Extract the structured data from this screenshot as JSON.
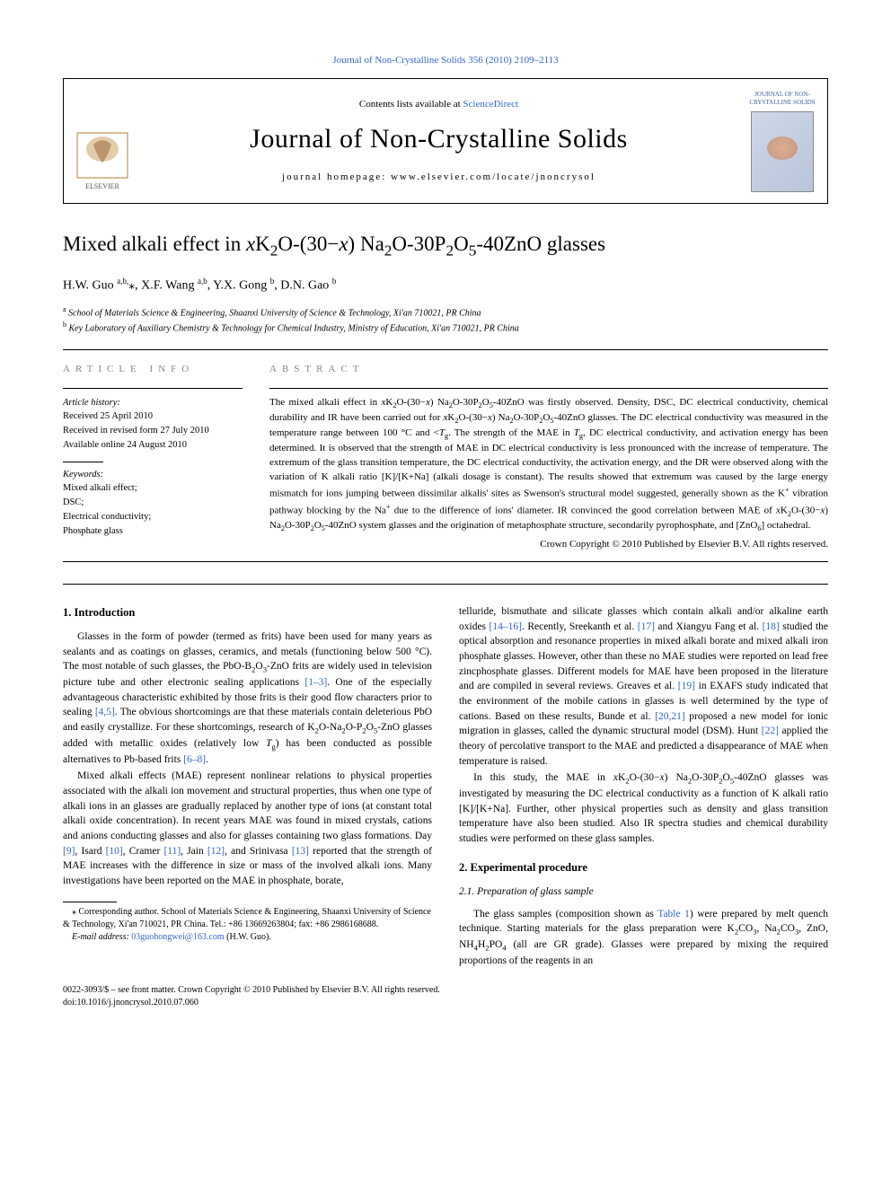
{
  "topLink": {
    "prefix": "",
    "journal": "Journal of Non-Crystalline Solids 356 (2010) 2109–2113"
  },
  "headerBox": {
    "contentsPrefix": "Contents lists available at ",
    "contentsLink": "ScienceDirect",
    "journalTitle": "Journal of Non-Crystalline Solids",
    "homepage": "journal homepage: www.elsevier.com/locate/jnoncrysol",
    "issnTag": "JOURNAL OF\nNON-CRYSTALLINE SOLIDS"
  },
  "article": {
    "title_html": "Mixed alkali effect in <span class='ital'>x</span>K<span class='sub'>2</span>O-(30−<span class='ital'>x</span>) Na<span class='sub'>2</span>O-30P<span class='sub'>2</span>O<span class='sub'>5</span>-40ZnO glasses",
    "authors_html": "H.W. Guo <span class='sup'>a,b,</span><span class='star'>⁎</span>, X.F. Wang <span class='sup'>a,b</span>, Y.X. Gong <span class='sup'>b</span>, D.N. Gao <span class='sup'>b</span>",
    "affiliations": [
      {
        "sup": "a",
        "text": "School of Materials Science & Engineering, Shaanxi University of Science & Technology, Xi'an 710021, PR China"
      },
      {
        "sup": "b",
        "text": "Key Laboratory of Auxiliary Chemistry & Technology for Chemical Industry, Ministry of Education, Xi'an 710021, PR China"
      }
    ]
  },
  "info": {
    "label": "article info",
    "historyLabel": "Article history:",
    "history": [
      "Received 25 April 2010",
      "Received in revised form 27 July 2010",
      "Available online 24 August 2010"
    ],
    "keywordsLabel": "Keywords:",
    "keywords": [
      "Mixed alkali effect;",
      "DSC;",
      "Electrical conductivity;",
      "Phosphate glass"
    ]
  },
  "abstract": {
    "label": "abstract",
    "text_html": "The mixed alkali effect in <span class='ital'>x</span>K<span class='sub'>2</span>O-(30−<span class='ital'>x</span>) Na<span class='sub'>2</span>O-30P<span class='sub'>2</span>O<span class='sub'>5</span>-40ZnO was firstly observed. Density, DSC, DC electrical conductivity, chemical durability and IR have been carried out for <span class='ital'>x</span>K<span class='sub'>2</span>O-(30−<span class='ital'>x</span>) Na<span class='sub'>2</span>O-30P<span class='sub'>2</span>O<span class='sub'>5</span>-40ZnO glasses. The DC electrical conductivity was measured in the temperature range between 100 °C and <<span class='ital'>T</span><span class='sub'>g</span>. The strength of the MAE in <span class='ital'>T</span><span class='sub'>g</span>, DC electrical conductivity, and activation energy has been determined. It is observed that the strength of MAE in DC electrical conductivity is less pronounced with the increase of temperature. The extremum of the glass transition temperature, the DC electrical conductivity, the activation energy, and the DR were observed along with the variation of K alkali ratio [K]/[K+Na] (alkali dosage is constant). The results showed that extremum was caused by the large energy mismatch for ions jumping between dissimilar alkalis' sites as Swenson's structural model suggested, generally shown as the K<span class='supn'>+</span> vibration pathway blocking by the Na<span class='supn'>+</span> due to the difference of ions' diameter. IR convinced the good correlation between MAE of <span class='ital'>x</span>K<span class='sub'>2</span>O-(30−<span class='ital'>x</span>) Na<span class='sub'>2</span>O-30P<span class='sub'>2</span>O<span class='sub'>5</span>-40ZnO system glasses and the origination of metaphosphate structure, secondarily pyrophosphate, and [ZnO<span class='sub'>6</span>] octahedral.",
    "copyright": "Crown Copyright © 2010 Published by Elsevier B.V. All rights reserved."
  },
  "body": {
    "introHeading": "1. Introduction",
    "intro_p1_html": "Glasses in the form of powder (termed as frits) have been used for many years as sealants and as coatings on glasses, ceramics, and metals (functioning below 500 °C). The most notable of such glasses, the PbO-B<span class='sub'>2</span>O<span class='sub'>3</span>-ZnO frits are widely used in television picture tube and other electronic sealing applications <span class='reflink'>[1–3]</span>. One of the especially advantageous characteristic exhibited by those frits is their good flow characters prior to sealing <span class='reflink'>[4,5]</span>. The obvious shortcomings are that these materials contain deleterious PbO and easily crystallize. For these shortcomings, research of K<span class='sub'>2</span>O-Na<span class='sub'>2</span>O-P<span class='sub'>2</span>O<span class='sub'>5</span>-ZnO glasses added with metallic oxides (relatively low <span class='ital'>T</span><span class='sub'>g</span>) has been conducted as possible alternatives to Pb-based frits <span class='reflink'>[6–8]</span>.",
    "intro_p2_html": "Mixed alkali effects (MAE) represent nonlinear relations to physical properties associated with the alkali ion movement and structural properties, thus when one type of alkali ions in an glasses are gradually replaced by another type of ions (at constant total alkali oxide concentration). In recent years MAE was found in mixed crystals, cations and anions conducting glasses and also for glasses containing two glass formations. Day <span class='reflink'>[9]</span>, Isard <span class='reflink'>[10]</span>, Cramer <span class='reflink'>[11]</span>, Jain <span class='reflink'>[12]</span>, and Srinivasa <span class='reflink'>[13]</span> reported that the strength of MAE increases with the difference in size or mass of the involved alkali ions. Many investigations have been reported on the MAE in phosphate, borate,",
    "intro_p3_html": "telluride, bismuthate and silicate glasses which contain alkali and/or alkaline earth oxides <span class='reflink'>[14–16]</span>. Recently, Sreekanth et al. <span class='reflink'>[17]</span> and Xiangyu Fang et al. <span class='reflink'>[18]</span> studied the optical absorption and resonance properties in mixed alkali borate and mixed alkali iron phosphate glasses. However, other than these no MAE studies were reported on lead free zincphosphate glasses. Different models for MAE have been proposed in the literature and are compiled in several reviews. Greaves et al. <span class='reflink'>[19]</span> in EXAFS study indicated that the environment of the mobile cations in glasses is well determined by the type of cations. Based on these results, Bunde et al. <span class='reflink'>[20,21]</span> proposed a new model for ionic migration in glasses, called the dynamic structural model (DSM). Hunt <span class='reflink'>[22]</span> applied the theory of percolative transport to the MAE and predicted a disappearance of MAE when temperature is raised.",
    "intro_p4_html": "In this study, the MAE in <span class='ital'>x</span>K<span class='sub'>2</span>O-(30−<span class='ital'>x</span>) Na<span class='sub'>2</span>O-30P<span class='sub'>2</span>O<span class='sub'>5</span>-40ZnO glasses was investigated by measuring the DC electrical conductivity as a function of K alkali ratio [K]/[K+Na]. Further, other physical properties such as density and glass transition temperature have also been studied. Also IR spectra studies and chemical durability studies were performed on these glass samples.",
    "expHeading": "2. Experimental procedure",
    "expSubHeading": "2.1. Preparation of glass sample",
    "exp_p1_html": "The glass samples (composition shown as <span class='reflink'>Table 1</span>) were prepared by melt quench technique. Starting materials for the glass preparation were K<span class='sub'>2</span>CO<span class='sub'>3</span>, Na<span class='sub'>2</span>CO<span class='sub'>3</span>, ZnO, NH<span class='sub'>4</span>H<span class='sub'>2</span>PO<span class='sub'>4</span> (all are GR grade). Glasses were prepared by mixing the required proportions of the reagents in an"
  },
  "footnote": {
    "corr_html": "⁎ Corresponding author. School of Materials Science &amp; Engineering, Shaanxi University of Science &amp; Technology, Xi'an 710021, PR China. Tel.: +86 13669263804; fax: +86 2986168688.",
    "emailLabel": "E-mail address:",
    "email": "03guohongwei@163.com",
    "emailSuffix": "(H.W. Guo)."
  },
  "pageFooter": {
    "line1": "0022-3093/$ – see front matter. Crown Copyright © 2010 Published by Elsevier B.V. All rights reserved.",
    "line2": "doi:10.1016/j.jnoncrysol.2010.07.060"
  },
  "colors": {
    "link": "#3366cc",
    "text": "#000000",
    "greyLabel": "#888888"
  }
}
